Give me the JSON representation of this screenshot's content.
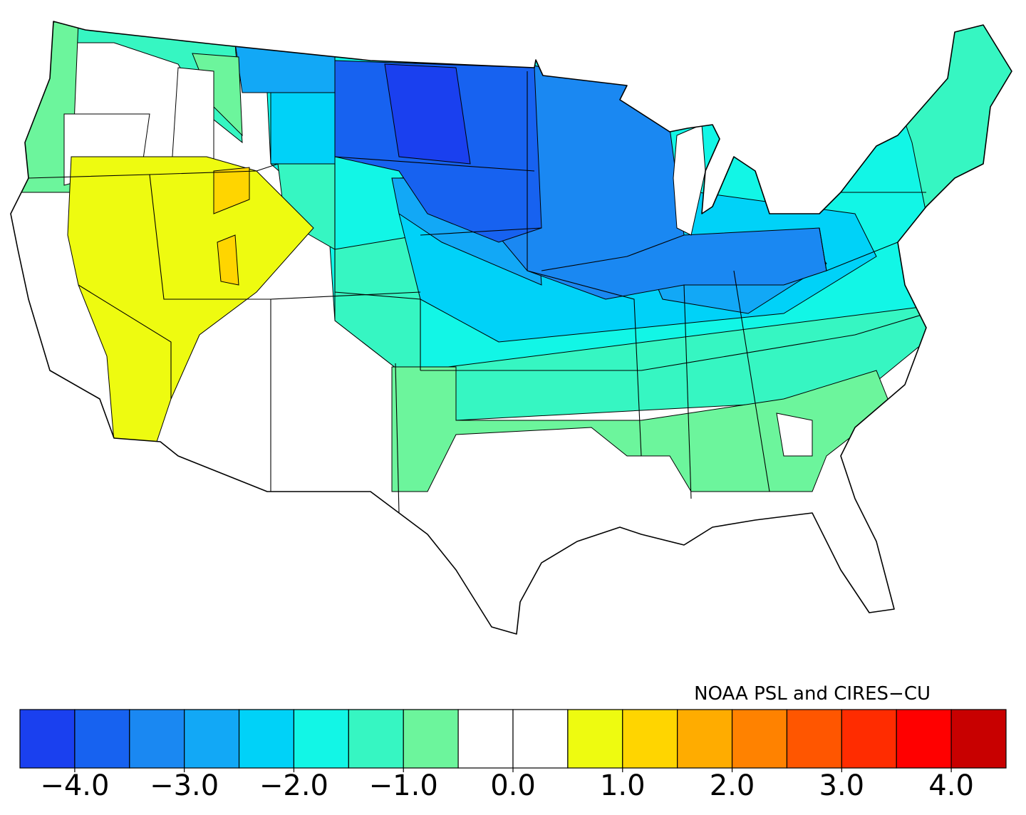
{
  "colorbar": {
    "lim": [
      -4.5,
      4.5
    ],
    "colors": [
      "#1a40ef",
      "#1762f0",
      "#1a88f2",
      "#12a8f6",
      "#00d2f8",
      "#12f6e6",
      "#36f6c2",
      "#6cf59c",
      "#ffffff",
      "#ffffff",
      "#eefb10",
      "#ffd500",
      "#ffac00",
      "#ff8200",
      "#ff5600",
      "#ff2c00",
      "#ff0000",
      "#c80000"
    ],
    "ticks": [
      {
        "value": -4,
        "label": "−4.0"
      },
      {
        "value": -3,
        "label": "−3.0"
      },
      {
        "value": -2,
        "label": "−2.0"
      },
      {
        "value": -1,
        "label": "−1.0"
      },
      {
        "value": 0,
        "label": "0.0"
      },
      {
        "value": 1,
        "label": "1.0"
      },
      {
        "value": 2,
        "label": "2.0"
      },
      {
        "value": 3,
        "label": "3.0"
      },
      {
        "value": 4,
        "label": "4.0"
      }
    ]
  },
  "credit": "NOAA PSL and CIRES−CU"
}
